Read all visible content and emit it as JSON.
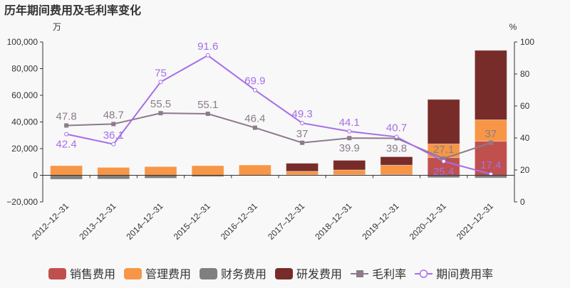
{
  "chart_data": {
    "type": "bar",
    "title": "历年期间费用及毛利率变化",
    "ylabel_left": "万",
    "ylabel_right": "%",
    "ylim_left": [
      -20000,
      100000
    ],
    "yticks_left": [
      "−20,000",
      "0",
      "20,000",
      "40,000",
      "60,000",
      "80,000",
      "100,000"
    ],
    "ylim_right": [
      0,
      100
    ],
    "yticks_right": [
      "0",
      "20",
      "40",
      "60",
      "80",
      "100"
    ],
    "categories": [
      "2012-12-31",
      "2013-12-31",
      "2014-12-31",
      "2015-12-31",
      "2016-12-31",
      "2017-12-31",
      "2018-12-31",
      "2019-12-31",
      "2020-12-31",
      "2021-12-31"
    ],
    "stacked_series": [
      {
        "name": "销售费用",
        "color": "#c0504d",
        "values": [
          0,
          0,
          0,
          0,
          0,
          300,
          500,
          700,
          13300,
          25600
        ]
      },
      {
        "name": "管理费用",
        "color": "#f79646",
        "values": [
          7200,
          5900,
          6500,
          7200,
          7700,
          2700,
          3500,
          6900,
          10200,
          16000
        ]
      },
      {
        "name": "财务费用",
        "color": "#7f7f7f",
        "values": [
          -3000,
          -2800,
          -2200,
          -1000,
          -200,
          0,
          0,
          0,
          -1800,
          -2000
        ]
      },
      {
        "name": "研发费用",
        "color": "#772c2a",
        "values": [
          0,
          0,
          0,
          0,
          0,
          6000,
          7200,
          6300,
          33400,
          52100
        ]
      }
    ],
    "line_series": [
      {
        "name": "毛利率",
        "color": "#8b7b8b",
        "marker": "square",
        "values": [
          47.8,
          48.7,
          55.5,
          55.1,
          46.4,
          37,
          39.9,
          39.8,
          27.1,
          37
        ],
        "labels": [
          "47.8",
          "48.7",
          "55.5",
          "55.1",
          "46.4",
          "37",
          "39.9",
          "39.8",
          "27.1",
          "37"
        ]
      },
      {
        "name": "期间费用率",
        "color": "#a66ee8",
        "marker": "circle",
        "values": [
          42.4,
          36.1,
          75,
          91.6,
          69.9,
          49.3,
          44.1,
          40.7,
          25.4,
          17.4
        ],
        "labels": [
          "42.4",
          "36.1",
          "75",
          "91.6",
          "69.9",
          "49.3",
          "44.1",
          "40.7",
          "25.4",
          "17.4"
        ]
      }
    ],
    "legend_position": "bottom"
  }
}
